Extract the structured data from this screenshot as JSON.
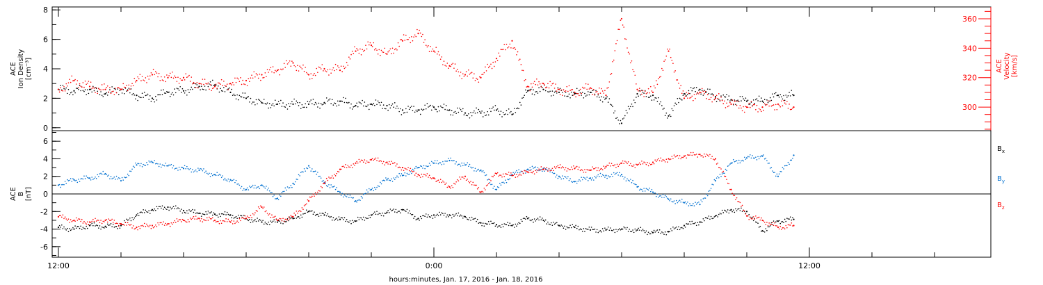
{
  "chart_data": [
    {
      "type": "scatter",
      "panel": "plasma",
      "ylabel": [
        "ACE",
        "Ion Density",
        "[cm⁻³]"
      ],
      "ylabel_right": [
        "ACE",
        "Velocity",
        "[km/s]"
      ],
      "ylim": [
        -0.2,
        8.2
      ],
      "yticks": [
        0,
        2,
        4,
        6,
        8
      ],
      "ylim_right": [
        284,
        368
      ],
      "yticks_right": [
        300,
        320,
        340,
        360
      ],
      "grid": false,
      "series": [
        {
          "name": "Ion Density",
          "axis": "left",
          "color": "#000000",
          "x": [
            0.0,
            0.5,
            1.0,
            1.5,
            2.0,
            2.5,
            3.0,
            3.5,
            4.0,
            4.5,
            5.0,
            5.5,
            6.0,
            6.5,
            7.0,
            7.5,
            8.0,
            8.5,
            9.0,
            9.5,
            10.0,
            10.5,
            11.0,
            11.5,
            12.0,
            12.5,
            13.0,
            13.5,
            14.0,
            14.5,
            15.0,
            15.5,
            16.0,
            16.5,
            17.0,
            17.5,
            18.0,
            18.5,
            19.0,
            19.5,
            20.0,
            20.5,
            21.0,
            21.5,
            22.0,
            22.5,
            23.0,
            23.5
          ],
          "y": [
            2.6,
            2.5,
            2.6,
            2.3,
            2.6,
            2.2,
            2.0,
            2.4,
            2.5,
            2.8,
            2.9,
            2.4,
            2.0,
            1.7,
            1.6,
            1.6,
            1.6,
            1.7,
            1.8,
            1.5,
            1.6,
            1.5,
            1.2,
            1.2,
            1.4,
            1.2,
            1.0,
            1.0,
            1.2,
            0.9,
            2.5,
            2.6,
            2.4,
            2.3,
            2.4,
            2.0,
            0.3,
            2.3,
            2.2,
            0.8,
            2.3,
            2.6,
            2.1,
            1.9,
            1.8,
            1.8,
            2.2,
            2.2
          ]
        },
        {
          "name": "Velocity",
          "axis": "right",
          "color": "#ff0000",
          "x": [
            0.0,
            0.5,
            1.0,
            1.5,
            2.0,
            2.5,
            3.0,
            3.5,
            4.0,
            4.5,
            5.0,
            5.5,
            6.0,
            6.5,
            7.0,
            7.5,
            8.0,
            8.5,
            9.0,
            9.5,
            10.0,
            10.5,
            11.0,
            11.5,
            12.0,
            12.5,
            13.0,
            13.5,
            14.0,
            14.5,
            15.0,
            15.5,
            16.0,
            16.5,
            17.0,
            17.5,
            18.0,
            18.5,
            19.0,
            19.5,
            20.0,
            20.5,
            21.0,
            21.5,
            22.0,
            22.5,
            23.0,
            23.5
          ],
          "y": [
            312,
            318,
            314,
            312,
            312,
            318,
            322,
            320,
            320,
            316,
            314,
            316,
            318,
            322,
            325,
            330,
            322,
            326,
            325,
            338,
            342,
            336,
            345,
            350,
            338,
            328,
            322,
            320,
            333,
            345,
            314,
            316,
            312,
            310,
            313,
            308,
            360,
            312,
            310,
            338,
            306,
            310,
            306,
            302,
            300,
            300,
            302,
            300
          ]
        }
      ]
    },
    {
      "type": "scatter",
      "panel": "magnetic field",
      "ylabel": [
        "ACE",
        "B",
        "[nT]"
      ],
      "ylim": [
        -7.2,
        7.2
      ],
      "yticks": [
        -6,
        -4,
        -2,
        0,
        2,
        4,
        6
      ],
      "zero_line": true,
      "grid": false,
      "legend": "right",
      "series": [
        {
          "name": "Bx",
          "color": "#000000",
          "x": [
            0.0,
            0.5,
            1.0,
            1.5,
            2.0,
            2.5,
            3.0,
            3.5,
            4.0,
            4.5,
            5.0,
            5.5,
            6.0,
            6.5,
            7.0,
            7.5,
            8.0,
            8.5,
            9.0,
            9.5,
            10.0,
            10.5,
            11.0,
            11.5,
            12.0,
            12.5,
            13.0,
            13.5,
            14.0,
            14.5,
            15.0,
            15.5,
            16.0,
            16.5,
            17.0,
            17.5,
            18.0,
            18.5,
            19.0,
            19.5,
            20.0,
            20.5,
            21.0,
            21.5,
            22.0,
            22.5,
            23.0,
            23.5
          ],
          "y": [
            -3.8,
            -4.0,
            -3.6,
            -3.7,
            -3.6,
            -2.4,
            -1.8,
            -1.5,
            -1.9,
            -2.2,
            -2.3,
            -2.4,
            -2.8,
            -3.2,
            -3.2,
            -2.8,
            -2.0,
            -2.4,
            -2.9,
            -3.1,
            -2.4,
            -2.1,
            -1.8,
            -2.8,
            -2.4,
            -2.4,
            -2.6,
            -3.3,
            -3.5,
            -3.6,
            -2.8,
            -3.0,
            -3.6,
            -3.8,
            -4.1,
            -4.1,
            -4.0,
            -4.1,
            -4.4,
            -4.3,
            -3.6,
            -3.2,
            -2.5,
            -1.8,
            -2.0,
            -4.2,
            -3.1,
            -2.9
          ]
        },
        {
          "name": "By",
          "color": "#0070d0",
          "x": [
            0.0,
            0.5,
            1.0,
            1.5,
            2.0,
            2.5,
            3.0,
            3.5,
            4.0,
            4.5,
            5.0,
            5.5,
            6.0,
            6.5,
            7.0,
            7.5,
            8.0,
            8.5,
            9.0,
            9.5,
            10.0,
            10.5,
            11.0,
            11.5,
            12.0,
            12.5,
            13.0,
            13.5,
            14.0,
            14.5,
            15.0,
            15.5,
            16.0,
            16.5,
            17.0,
            17.5,
            18.0,
            18.5,
            19.0,
            19.5,
            20.0,
            20.5,
            21.0,
            21.5,
            22.0,
            22.5,
            23.0,
            23.5
          ],
          "y": [
            1.0,
            1.6,
            1.8,
            2.3,
            1.5,
            3.3,
            3.6,
            3.2,
            2.9,
            2.7,
            2.2,
            1.6,
            0.5,
            1.0,
            -0.5,
            1.2,
            3.2,
            1.3,
            0.2,
            -0.8,
            0.5,
            1.6,
            2.1,
            3.0,
            3.5,
            3.8,
            3.3,
            2.7,
            0.5,
            2.2,
            2.8,
            2.9,
            2.0,
            1.4,
            1.8,
            2.1,
            2.2,
            0.8,
            0.2,
            -0.6,
            -1.0,
            -1.2,
            1.5,
            3.5,
            4.1,
            4.3,
            2.0,
            4.4
          ]
        },
        {
          "name": "Bz",
          "color": "#ff0000",
          "x": [
            0.0,
            0.5,
            1.0,
            1.5,
            2.0,
            2.5,
            3.0,
            3.5,
            4.0,
            4.5,
            5.0,
            5.5,
            6.0,
            6.5,
            7.0,
            7.5,
            8.0,
            8.5,
            9.0,
            9.5,
            10.0,
            10.5,
            11.0,
            11.5,
            12.0,
            12.5,
            13.0,
            13.5,
            14.0,
            14.5,
            15.0,
            15.5,
            16.0,
            16.5,
            17.0,
            17.5,
            18.0,
            18.5,
            19.0,
            19.5,
            20.0,
            20.5,
            21.0,
            21.5,
            22.0,
            22.5,
            23.0,
            23.5
          ],
          "y": [
            -2.6,
            -3.0,
            -3.2,
            -3.0,
            -3.4,
            -3.8,
            -3.6,
            -3.4,
            -3.0,
            -2.8,
            -3.0,
            -3.2,
            -2.8,
            -1.5,
            -3.0,
            -2.6,
            -0.8,
            1.2,
            2.8,
            3.5,
            3.9,
            3.6,
            3.0,
            2.2,
            1.8,
            0.8,
            2.0,
            0.2,
            2.3,
            2.1,
            2.5,
            2.8,
            3.0,
            2.9,
            2.7,
            3.1,
            3.5,
            3.3,
            3.6,
            4.0,
            4.3,
            4.5,
            4.0,
            0.5,
            -2.5,
            -3.0,
            -3.8,
            -3.6
          ]
        }
      ]
    }
  ],
  "x_axis": {
    "unit": "hours",
    "range": [
      -0.2,
      29.8
    ],
    "tick_labels": [
      {
        "label": "12:00",
        "x": 0
      },
      {
        "label": "0:00",
        "x": 12
      },
      {
        "label": "12:00",
        "x": 24
      }
    ],
    "minor_tick_step": 2,
    "title": "hours:minutes, Jan. 17, 2016 - Jan. 18, 2016"
  }
}
